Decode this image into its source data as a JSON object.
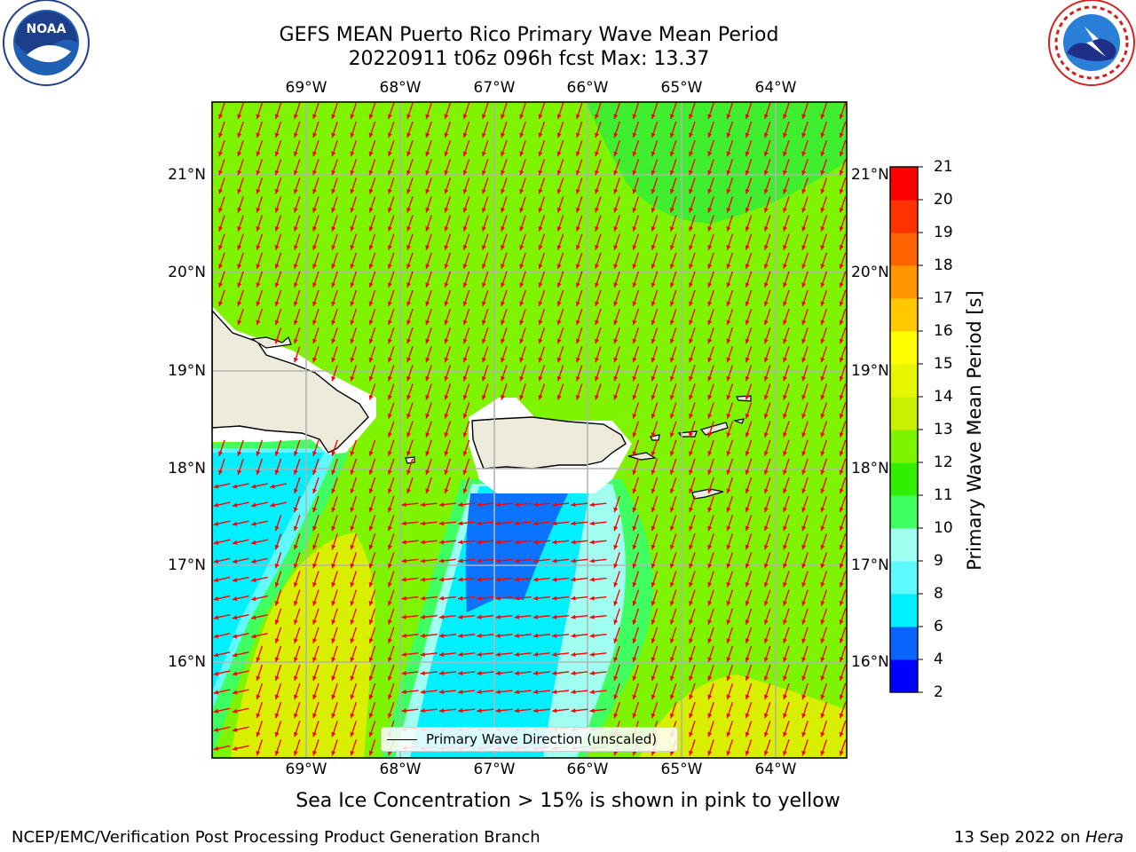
{
  "header": {
    "title_line1": "GEFS MEAN Puerto Rico Primary Wave Mean Period",
    "title_line2": "20220911 t06z 096h fcst   Max: 13.37"
  },
  "logos": {
    "left": "NOAA",
    "left_ring_text": "NATIONAL OCEANIC AND ATMOSPHERIC ADMINISTRATION · U.S. DEPARTMENT OF COMMERCE",
    "right_ring_text": "NATIONAL WEATHER SERVICE"
  },
  "map": {
    "lon_labels": [
      "69°W",
      "68°W",
      "67°W",
      "66°W",
      "65°W",
      "64°W"
    ],
    "lat_labels": [
      "21°N",
      "20°N",
      "19°N",
      "18°N",
      "17°N",
      "16°N"
    ],
    "legend_label": "Primary Wave Direction (unscaled)",
    "colors": {
      "land": "#ecebdc",
      "frame": "#000000",
      "arrow": "#ff0000",
      "grid": "#b3b3b3"
    }
  },
  "colorbar": {
    "label": "Primary Wave Mean Period [s]",
    "ticks": [
      "2",
      "4",
      "6",
      "8",
      "9",
      "10",
      "11",
      "12",
      "13",
      "14",
      "15",
      "16",
      "17",
      "18",
      "19",
      "20",
      "21"
    ],
    "colors": [
      "#0000ff",
      "#0a64ff",
      "#00f0ff",
      "#5efaff",
      "#a0fff0",
      "#40ff60",
      "#30f000",
      "#7ff400",
      "#c8f000",
      "#e6f500",
      "#ffff00",
      "#ffc800",
      "#ff9600",
      "#ff6400",
      "#ff3200",
      "#ff0000"
    ]
  },
  "footer": {
    "sea_ice_note": "Sea Ice Concentration > 15% is shown in pink to yellow",
    "left": "NCEP/EMC/Verification Post Processing Product Generation Branch",
    "right_prefix": "13 Sep 2022 on ",
    "right_host": "Hera"
  }
}
